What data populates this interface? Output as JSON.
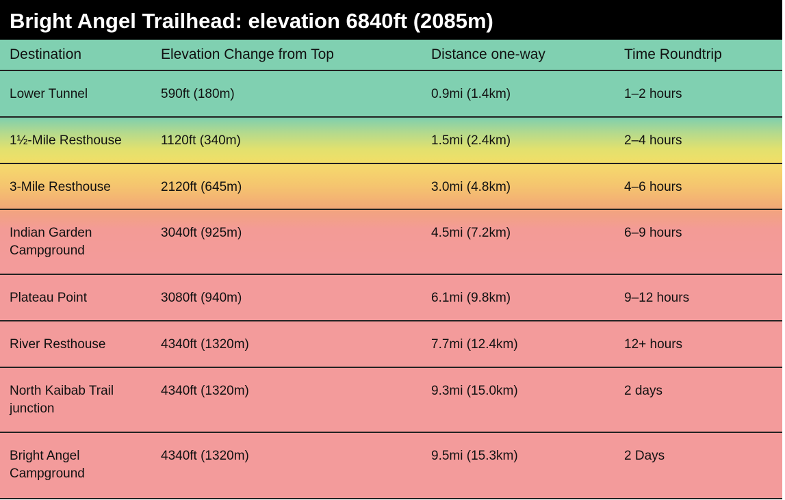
{
  "title": "Bright Angel Trailhead: elevation 6840ft (2085m)",
  "table": {
    "header": [
      "Destination",
      "Elevation Change from Top",
      "Distance one-way",
      "Time Roundtrip"
    ],
    "rows": [
      [
        "Lower Tunnel",
        "590ft (180m)",
        "0.9mi (1.4km)",
        "1–2 hours"
      ],
      [
        "1½-Mile Resthouse",
        "1120ft (340m)",
        "1.5mi (2.4km)",
        "2–4 hours"
      ],
      [
        "3-Mile Resthouse",
        "2120ft (645m)",
        "3.0mi (4.8km)",
        "4–6 hours"
      ],
      [
        "Indian Garden Campground",
        "3040ft (925m)",
        "4.5mi (7.2km)",
        "6–9 hours"
      ],
      [
        "Plateau Point",
        "3080ft (940m)",
        "6.1mi (9.8km)",
        "9–12 hours"
      ],
      [
        "River Resthouse",
        "4340ft (1320m)",
        "7.7mi (12.4km)",
        "12+ hours"
      ],
      [
        "North Kaibab Trail junction",
        "4340ft (1320m)",
        "9.3mi (15.0km)",
        "2 days"
      ],
      [
        "Bright Angel Campground",
        "4340ft (1320m)",
        "9.5mi (15.3km)",
        "2 Days"
      ]
    ]
  }
}
